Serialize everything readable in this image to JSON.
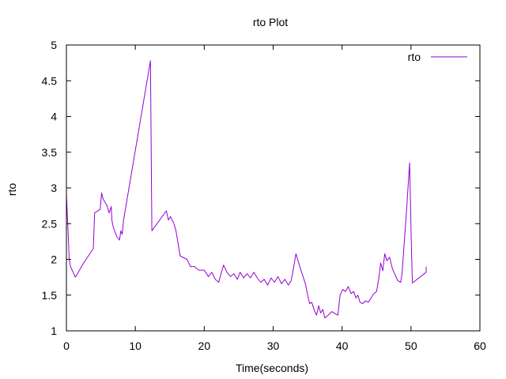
{
  "chart_data": {
    "type": "line",
    "title": "rto Plot",
    "xlabel": "Time(seconds)",
    "ylabel": "rto",
    "xlim": [
      0,
      60
    ],
    "ylim": [
      1,
      5
    ],
    "xticks": [
      0,
      10,
      20,
      30,
      40,
      50,
      60
    ],
    "yticks": [
      1,
      1.5,
      2,
      2.5,
      3,
      3.5,
      4,
      4.5,
      5
    ],
    "ytick_labels": [
      "1",
      "1.5",
      "2",
      "2.5",
      "3",
      "3.5",
      "4",
      "4.5",
      "5"
    ],
    "grid": false,
    "legend_position": "top-right",
    "series": [
      {
        "name": "rto",
        "color": "#9400d3",
        "x": [
          0,
          0.2,
          0.4,
          0.6,
          1.3,
          2.5,
          3.9,
          4.1,
          4.9,
          5.1,
          5.3,
          5.9,
          6.2,
          6.5,
          6.6,
          6.8,
          7.3,
          7.7,
          7.9,
          8.1,
          8.3,
          12.2,
          12.35,
          12.4,
          14.5,
          14.8,
          15.1,
          15.6,
          15.9,
          16.5,
          17.5,
          18,
          18.6,
          19.2,
          20,
          20.6,
          21.1,
          21.6,
          22.1,
          22.8,
          23.3,
          23.8,
          24.3,
          24.8,
          25.2,
          25.7,
          26.2,
          26.7,
          27.2,
          27.7,
          28.2,
          28.7,
          29.2,
          29.7,
          30.2,
          30.7,
          31.2,
          31.7,
          32.2,
          32.6,
          32.9,
          33.3,
          33.7,
          34.2,
          34.7,
          35.0,
          35.3,
          35.6,
          36.0,
          36.3,
          36.6,
          36.9,
          37.2,
          37.5,
          38.0,
          38.5,
          39.0,
          39.4,
          39.7,
          40.1,
          40.5,
          40.9,
          41.3,
          41.7,
          42.0,
          42.3,
          42.6,
          43.0,
          43.4,
          43.8,
          44.2,
          44.6,
          45.0,
          45.3,
          45.6,
          45.9,
          46.2,
          46.5,
          46.9,
          47.3,
          47.7,
          48.1,
          48.5,
          48.7,
          49.3,
          49.8,
          50.05,
          50.2,
          52.2,
          52.2
        ],
        "y": [
          2.9,
          2.5,
          2.0,
          1.9,
          1.75,
          1.95,
          2.15,
          2.65,
          2.7,
          2.93,
          2.85,
          2.75,
          2.65,
          2.74,
          2.55,
          2.45,
          2.32,
          2.27,
          2.4,
          2.35,
          2.55,
          4.78,
          2.9,
          2.4,
          2.68,
          2.55,
          2.6,
          2.5,
          2.4,
          2.05,
          2.0,
          1.9,
          1.9,
          1.85,
          1.85,
          1.76,
          1.82,
          1.72,
          1.68,
          1.92,
          1.82,
          1.76,
          1.8,
          1.72,
          1.82,
          1.74,
          1.8,
          1.74,
          1.82,
          1.74,
          1.68,
          1.72,
          1.64,
          1.74,
          1.68,
          1.76,
          1.66,
          1.72,
          1.64,
          1.7,
          1.85,
          2.08,
          1.95,
          1.8,
          1.65,
          1.5,
          1.38,
          1.4,
          1.28,
          1.22,
          1.35,
          1.25,
          1.3,
          1.18,
          1.22,
          1.27,
          1.24,
          1.22,
          1.5,
          1.58,
          1.55,
          1.62,
          1.52,
          1.55,
          1.46,
          1.5,
          1.4,
          1.38,
          1.42,
          1.4,
          1.46,
          1.52,
          1.55,
          1.72,
          1.95,
          1.84,
          2.08,
          1.98,
          2.03,
          1.87,
          1.78,
          1.7,
          1.68,
          1.8,
          2.6,
          3.35,
          2.2,
          1.67,
          1.82,
          1.9
        ]
      }
    ]
  }
}
